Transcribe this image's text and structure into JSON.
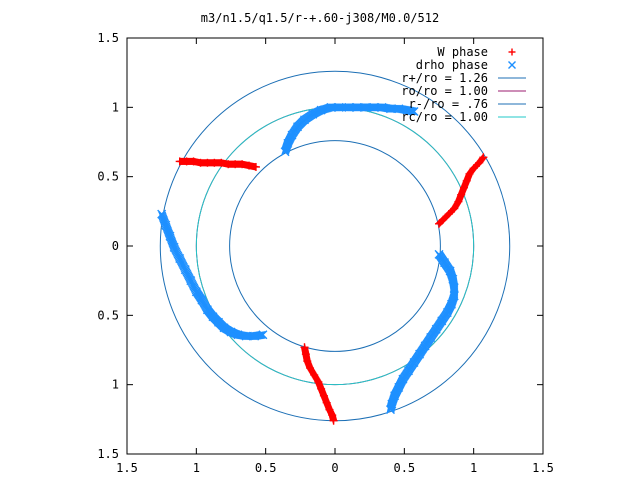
{
  "chart_data": {
    "type": "scatter",
    "title": "m3/n1.5/q1.5/r-+.60-j308/M0.0/512",
    "xlabel": "",
    "ylabel": "",
    "xlim": [
      -1.5,
      1.5
    ],
    "ylim": [
      -1.5,
      1.5
    ],
    "x_tick_values": [
      -1.5,
      -1,
      -0.5,
      0,
      0.5,
      1,
      1.5
    ],
    "x_tick_labels": [
      "1.5",
      "1",
      "0.5",
      "0",
      "0.5",
      "1",
      "1.5"
    ],
    "y_tick_values": [
      1.5,
      1,
      0.5,
      0,
      -0.5,
      -1,
      -1.5
    ],
    "y_tick_labels": [
      "1.5",
      "1",
      "0.5",
      "0",
      "0.5",
      "1",
      "1.5"
    ],
    "grid": false,
    "legend_position": "top-right",
    "legend": [
      {
        "label": "W phase",
        "marker": "+",
        "color": "#ff0000"
      },
      {
        "label": "drho phase",
        "marker": "x",
        "color": "#1e90ff"
      },
      {
        "label": "r+/ro = 1.26",
        "marker": "line",
        "color": "#1c6fb5"
      },
      {
        "label": "ro/ro = 1.00",
        "marker": "line",
        "color": "#9b1b6f"
      },
      {
        "label": "r-/ro = .76",
        "marker": "line",
        "color": "#1c6fb5"
      },
      {
        "label": "rc/ro = 1.00",
        "marker": "line",
        "color": "#20c8c8"
      }
    ],
    "circles": [
      {
        "name": "r+/ro = 1.26",
        "radius": 1.26,
        "color": "#1c6fb5"
      },
      {
        "name": "ro/ro = 1.00",
        "radius": 1.0,
        "color": "#9b1b6f"
      },
      {
        "name": "r-/ro = .76",
        "radius": 0.76,
        "color": "#1c6fb5"
      },
      {
        "name": "rc/ro = 1.00",
        "radius": 1.0,
        "color": "#20c8c8"
      }
    ],
    "series": [
      {
        "name": "W phase",
        "marker": "+",
        "color": "#ff0000",
        "points": [
          [
            1.07,
            0.64
          ],
          [
            1.04,
            0.6
          ],
          [
            1.0,
            0.56
          ],
          [
            0.97,
            0.52
          ],
          [
            0.95,
            0.47
          ],
          [
            0.93,
            0.42
          ],
          [
            0.91,
            0.37
          ],
          [
            0.89,
            0.32
          ],
          [
            0.86,
            0.27
          ],
          [
            0.82,
            0.23
          ],
          [
            0.78,
            0.19
          ],
          [
            0.75,
            0.16
          ],
          [
            -0.22,
            -0.73
          ],
          [
            -0.21,
            -0.78
          ],
          [
            -0.2,
            -0.83
          ],
          [
            -0.18,
            -0.88
          ],
          [
            -0.15,
            -0.93
          ],
          [
            -0.12,
            -0.98
          ],
          [
            -0.1,
            -1.03
          ],
          [
            -0.08,
            -1.08
          ],
          [
            -0.06,
            -1.13
          ],
          [
            -0.04,
            -1.18
          ],
          [
            -0.02,
            -1.22
          ],
          [
            -0.01,
            -1.26
          ],
          [
            -1.12,
            0.61
          ],
          [
            -1.07,
            0.61
          ],
          [
            -1.02,
            0.61
          ],
          [
            -0.97,
            0.6
          ],
          [
            -0.92,
            0.6
          ],
          [
            -0.87,
            0.6
          ],
          [
            -0.82,
            0.6
          ],
          [
            -0.77,
            0.59
          ],
          [
            -0.72,
            0.59
          ],
          [
            -0.67,
            0.59
          ],
          [
            -0.62,
            0.58
          ],
          [
            -0.57,
            0.57
          ]
        ]
      },
      {
        "name": "drho phase",
        "marker": "x",
        "color": "#1e90ff",
        "points": [
          [
            -0.36,
            0.68
          ],
          [
            -0.34,
            0.74
          ],
          [
            -0.31,
            0.8
          ],
          [
            -0.27,
            0.86
          ],
          [
            -0.22,
            0.91
          ],
          [
            -0.16,
            0.95
          ],
          [
            -0.1,
            0.98
          ],
          [
            -0.03,
            1.0
          ],
          [
            0.03,
            1.0
          ],
          [
            0.1,
            1.0
          ],
          [
            0.16,
            1.0
          ],
          [
            0.22,
            1.0
          ],
          [
            0.28,
            1.0
          ],
          [
            0.34,
            1.0
          ],
          [
            0.4,
            0.99
          ],
          [
            0.46,
            0.99
          ],
          [
            0.52,
            0.98
          ],
          [
            0.57,
            0.97
          ],
          [
            -1.25,
            0.23
          ],
          [
            -1.22,
            0.15
          ],
          [
            -1.19,
            0.07
          ],
          [
            -1.16,
            -0.01
          ],
          [
            -1.12,
            -0.09
          ],
          [
            -1.08,
            -0.17
          ],
          [
            -1.04,
            -0.25
          ],
          [
            -1.0,
            -0.33
          ],
          [
            -0.96,
            -0.39
          ],
          [
            -0.92,
            -0.46
          ],
          [
            -0.88,
            -0.51
          ],
          [
            -0.84,
            -0.55
          ],
          [
            -0.8,
            -0.59
          ],
          [
            -0.75,
            -0.62
          ],
          [
            -0.7,
            -0.64
          ],
          [
            -0.64,
            -0.65
          ],
          [
            -0.58,
            -0.65
          ],
          [
            -0.52,
            -0.64
          ],
          [
            0.75,
            -0.06
          ],
          [
            0.79,
            -0.12
          ],
          [
            0.83,
            -0.18
          ],
          [
            0.85,
            -0.24
          ],
          [
            0.86,
            -0.3
          ],
          [
            0.86,
            -0.36
          ],
          [
            0.84,
            -0.42
          ],
          [
            0.81,
            -0.48
          ],
          [
            0.77,
            -0.54
          ],
          [
            0.73,
            -0.6
          ],
          [
            0.69,
            -0.66
          ],
          [
            0.65,
            -0.72
          ],
          [
            0.61,
            -0.78
          ],
          [
            0.57,
            -0.84
          ],
          [
            0.53,
            -0.9
          ],
          [
            0.49,
            -0.96
          ],
          [
            0.46,
            -1.02
          ],
          [
            0.43,
            -1.08
          ],
          [
            0.41,
            -1.14
          ],
          [
            0.4,
            -1.18
          ]
        ]
      }
    ]
  }
}
